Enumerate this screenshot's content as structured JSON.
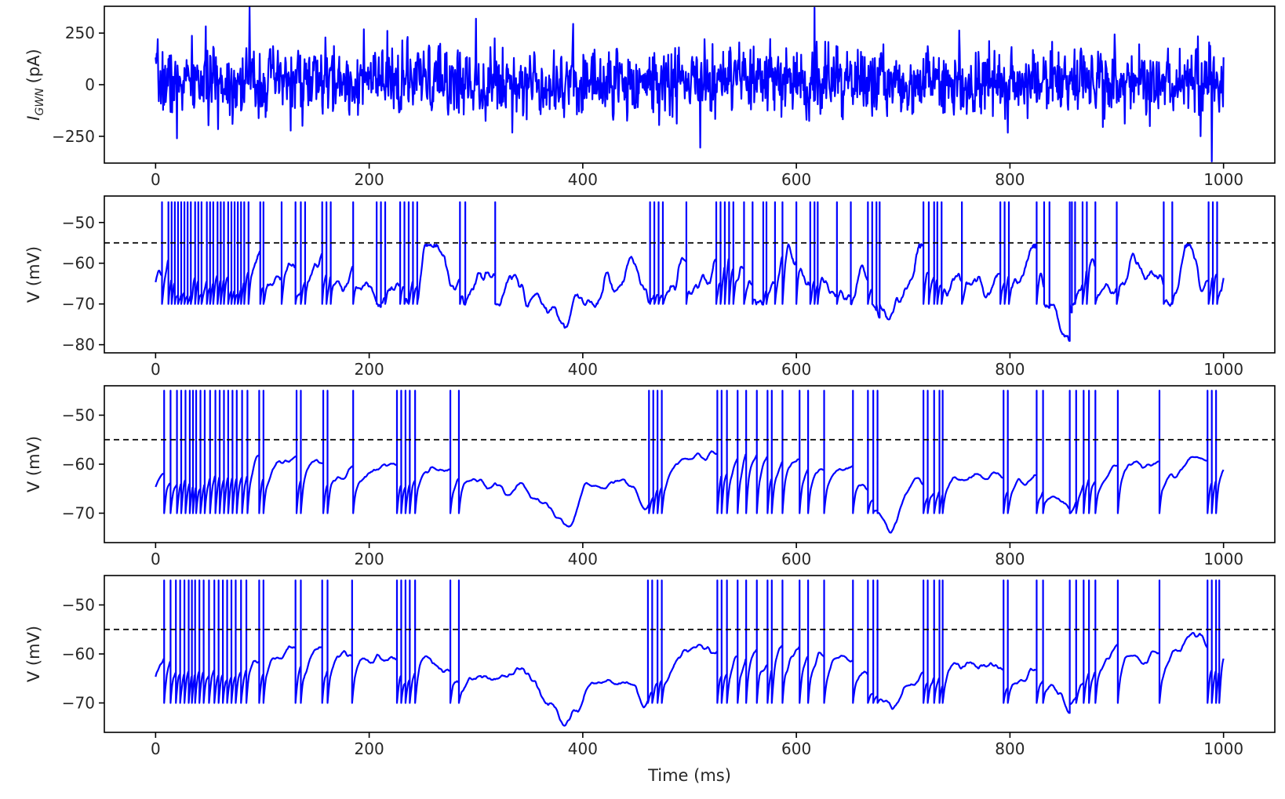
{
  "chart_data": [
    {
      "type": "line",
      "ylabel_main": "I",
      "ylabel_sub": "GWN",
      "ylabel_unit": "(pA)",
      "xlabel": "",
      "xlim": [
        -48,
        1048
      ],
      "ylim": [
        -380,
        380
      ],
      "xticks": [
        0,
        200,
        400,
        600,
        800,
        1000
      ],
      "yticks": [
        -250,
        0,
        250
      ],
      "ytick_labels": [
        "−250",
        "0",
        "250"
      ],
      "threshold": null,
      "line_color": "#0000ff",
      "trace": {
        "kind": "noise",
        "t_start": 0,
        "t_end": 1000,
        "dt": 0.5,
        "mean": 15,
        "sd": 95,
        "seed": 7,
        "extrema": [
          {
            "t": 88,
            "v": 375
          },
          {
            "t": 617,
            "v": 373
          },
          {
            "t": 510,
            "v": -305
          },
          {
            "t": 989,
            "v": -372
          },
          {
            "t": 20,
            "v": -260
          },
          {
            "t": 300,
            "v": 320
          }
        ]
      }
    },
    {
      "type": "line",
      "ylabel": "V (mV)",
      "xlabel": "",
      "xlim": [
        -48,
        1048
      ],
      "ylim": [
        -82,
        -43.5
      ],
      "xticks": [
        0,
        200,
        400,
        600,
        800,
        1000
      ],
      "yticks": [
        -80,
        -70,
        -60,
        -50
      ],
      "ytick_labels": [
        "−80",
        "−70",
        "−60",
        "−50"
      ],
      "threshold": -55,
      "line_color": "#0000ff",
      "trace": {
        "kind": "lif",
        "t_start": 0,
        "t_end": 1000,
        "dt": 0.5,
        "v_start": -65,
        "v_reset": -70,
        "v_spike": -45,
        "v_threshold": -55,
        "jitter": 1.4,
        "seed": 11,
        "spikes": [
          6,
          12,
          15,
          18,
          21,
          24,
          27,
          30,
          33,
          37,
          40,
          43,
          48,
          51,
          54,
          58,
          61,
          64,
          68,
          71,
          74,
          77,
          80,
          83,
          87,
          98,
          101,
          118,
          131,
          136,
          140,
          156,
          160,
          164,
          185,
          207,
          211,
          215,
          229,
          233,
          237,
          241,
          245,
          285,
          290,
          318,
          463,
          467,
          471,
          475,
          497,
          525,
          529,
          533,
          537,
          541,
          551,
          559,
          569,
          572,
          580,
          587,
          600,
          613,
          617,
          620,
          638,
          651,
          667,
          671,
          675,
          678,
          719,
          724,
          729,
          732,
          736,
          755,
          791,
          795,
          799,
          825,
          832,
          837,
          856,
          858,
          861,
          868,
          872,
          880,
          900,
          944,
          952,
          986,
          990,
          994
        ],
        "envelope": [
          [
            0,
            -60
          ],
          [
            100,
            -60
          ],
          [
            150,
            -62
          ],
          [
            200,
            -63
          ],
          [
            240,
            -60
          ],
          [
            280,
            -61
          ],
          [
            320,
            -64
          ],
          [
            360,
            -68
          ],
          [
            385,
            -76
          ],
          [
            400,
            -68
          ],
          [
            430,
            -63
          ],
          [
            450,
            -60
          ],
          [
            460,
            -68
          ],
          [
            500,
            -60
          ],
          [
            560,
            -60
          ],
          [
            600,
            -61
          ],
          [
            640,
            -63
          ],
          [
            670,
            -67
          ],
          [
            685,
            -75
          ],
          [
            700,
            -65
          ],
          [
            720,
            -61
          ],
          [
            780,
            -62
          ],
          [
            830,
            -64
          ],
          [
            855,
            -76
          ],
          [
            870,
            -61
          ],
          [
            940,
            -61
          ],
          [
            1000,
            -58
          ]
        ]
      }
    },
    {
      "type": "line",
      "ylabel": "V (mV)",
      "xlabel": "",
      "xlim": [
        -48,
        1048
      ],
      "ylim": [
        -76,
        -44
      ],
      "xticks": [
        0,
        200,
        400,
        600,
        800,
        1000
      ],
      "yticks": [
        -70,
        -60,
        -50
      ],
      "ytick_labels": [
        "−70",
        "−60",
        "−50"
      ],
      "threshold": -55,
      "line_color": "#0000ff",
      "trace": {
        "kind": "lif",
        "t_start": 0,
        "t_end": 1000,
        "dt": 0.5,
        "v_start": -65,
        "v_reset": -70,
        "v_spike": -45,
        "v_threshold": -55,
        "jitter": 0.35,
        "seed": 23,
        "spikes": [
          8,
          14,
          20,
          24,
          28,
          32,
          35,
          38,
          42,
          46,
          51,
          56,
          60,
          64,
          68,
          72,
          76,
          81,
          86,
          97,
          101,
          132,
          136,
          157,
          161,
          185,
          226,
          230,
          234,
          238,
          243,
          276,
          284,
          462,
          466,
          470,
          474,
          526,
          530,
          535,
          545,
          553,
          563,
          573,
          577,
          587,
          603,
          611,
          626,
          653,
          667,
          672,
          676,
          719,
          723,
          729,
          734,
          737,
          794,
          798,
          825,
          831,
          856,
          862,
          869,
          874,
          880,
          901,
          940,
          985,
          989,
          993
        ],
        "envelope": [
          [
            0,
            -60
          ],
          [
            100,
            -59
          ],
          [
            150,
            -60
          ],
          [
            200,
            -61
          ],
          [
            240,
            -60
          ],
          [
            280,
            -62
          ],
          [
            320,
            -64
          ],
          [
            360,
            -68
          ],
          [
            385,
            -74
          ],
          [
            400,
            -65
          ],
          [
            430,
            -64
          ],
          [
            455,
            -70
          ],
          [
            470,
            -60
          ],
          [
            560,
            -58
          ],
          [
            600,
            -59
          ],
          [
            640,
            -61
          ],
          [
            670,
            -66
          ],
          [
            685,
            -73
          ],
          [
            700,
            -63
          ],
          [
            760,
            -63
          ],
          [
            830,
            -64
          ],
          [
            855,
            -72
          ],
          [
            870,
            -60
          ],
          [
            940,
            -60
          ],
          [
            1000,
            -58
          ]
        ]
      }
    },
    {
      "type": "line",
      "ylabel": "V (mV)",
      "xlabel": "Time (ms)",
      "xlim": [
        -48,
        1048
      ],
      "ylim": [
        -76,
        -44
      ],
      "xticks": [
        0,
        200,
        400,
        600,
        800,
        1000
      ],
      "yticks": [
        -70,
        -60,
        -50
      ],
      "ytick_labels": [
        "−70",
        "−60",
        "−50"
      ],
      "threshold": -55,
      "line_color": "#0000ff",
      "trace": {
        "kind": "lif",
        "t_start": 0,
        "t_end": 1000,
        "dt": 0.5,
        "v_start": -65,
        "v_reset": -70,
        "v_spike": -45,
        "v_threshold": -55,
        "jitter": 0.45,
        "seed": 37,
        "spikes": [
          8,
          14,
          19,
          23,
          27,
          31,
          34,
          37,
          41,
          45,
          50,
          55,
          59,
          63,
          67,
          71,
          75,
          80,
          85,
          97,
          101,
          131,
          136,
          156,
          161,
          184,
          226,
          230,
          234,
          238,
          243,
          276,
          284,
          461,
          465,
          470,
          474,
          526,
          530,
          535,
          545,
          553,
          563,
          573,
          577,
          587,
          603,
          611,
          626,
          653,
          667,
          672,
          676,
          719,
          723,
          729,
          734,
          737,
          794,
          798,
          825,
          831,
          856,
          862,
          869,
          874,
          880,
          901,
          940,
          985,
          989,
          993,
          996
        ],
        "envelope": [
          [
            0,
            -60
          ],
          [
            100,
            -59
          ],
          [
            150,
            -60
          ],
          [
            200,
            -61
          ],
          [
            240,
            -60
          ],
          [
            280,
            -62
          ],
          [
            320,
            -64
          ],
          [
            360,
            -68
          ],
          [
            385,
            -74
          ],
          [
            400,
            -65
          ],
          [
            430,
            -64
          ],
          [
            455,
            -70
          ],
          [
            470,
            -60
          ],
          [
            560,
            -58
          ],
          [
            600,
            -59
          ],
          [
            640,
            -61
          ],
          [
            670,
            -66
          ],
          [
            685,
            -73
          ],
          [
            700,
            -63
          ],
          [
            760,
            -63
          ],
          [
            830,
            -64
          ],
          [
            855,
            -72
          ],
          [
            870,
            -60
          ],
          [
            940,
            -60
          ],
          [
            1000,
            -58
          ]
        ]
      }
    }
  ]
}
